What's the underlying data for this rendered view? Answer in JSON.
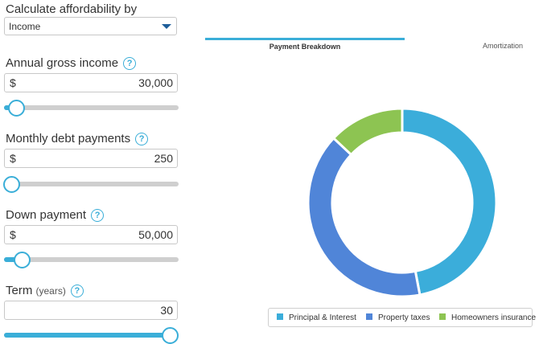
{
  "form": {
    "calc_by_label": "Calculate affordability by",
    "calc_by_value": "Income",
    "help_glyph": "?",
    "income": {
      "label": "Annual gross income",
      "currency": "$",
      "value": "30,000",
      "slider_fraction": 0.07
    },
    "debt": {
      "label": "Monthly debt payments",
      "currency": "$",
      "value": "250",
      "slider_fraction": 0.04
    },
    "down": {
      "label": "Down payment",
      "currency": "$",
      "value": "50,000",
      "slider_fraction": 0.1
    },
    "term": {
      "label": "Term",
      "unit": "(years)",
      "value": "30",
      "slider_fraction": 0.95
    }
  },
  "tabs": {
    "active": "Payment Breakdown",
    "other": "Amortization"
  },
  "chart_data": {
    "type": "pie",
    "donut": true,
    "categories": [
      "Principal & Interest",
      "Property taxes",
      "Homeowners insurance"
    ],
    "values": [
      47,
      40,
      13
    ],
    "colors": [
      "#3badda",
      "#5085d8",
      "#8dc452"
    ],
    "legend_position": "bottom"
  },
  "colors": {
    "accent": "#3aaed8",
    "caret": "#1e5e9a"
  }
}
